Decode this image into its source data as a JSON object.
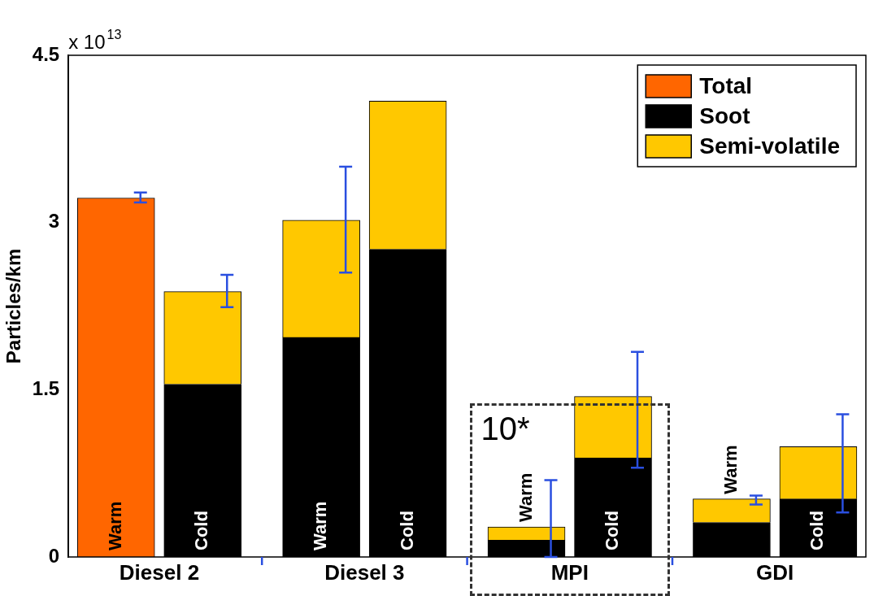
{
  "chart_data": {
    "type": "bar",
    "stacked": true,
    "ylabel": "Particles/km",
    "categories": [
      "Warm",
      "Cold",
      "Warm",
      "Cold",
      "Warm",
      "Cold",
      "Warm",
      "Cold"
    ],
    "series": [
      {
        "name": "Soot",
        "color": "#000000",
        "values": [
          0,
          1.55,
          1.97,
          2.76,
          0.15,
          0.89,
          0.31,
          0.52
        ]
      },
      {
        "name": "Semi-volatile",
        "color": "#ffc800",
        "values": [
          0,
          0.83,
          1.05,
          1.33,
          0.12,
          0.55,
          0.21,
          0.47
        ],
        "errors": [
          null,
          [
            2.24,
            2.53
          ],
          [
            2.55,
            3.5
          ],
          null,
          [
            0,
            0.69
          ],
          [
            0.8,
            1.84
          ],
          [
            0.47,
            0.55
          ],
          [
            0.4,
            1.28
          ]
        ]
      },
      {
        "name": "Total",
        "color": "#ff6600",
        "values": [
          3.22,
          0,
          0,
          0,
          0,
          0,
          0,
          0
        ],
        "errors": [
          [
            3.18,
            3.27
          ],
          null,
          null,
          null,
          null,
          null,
          null,
          null
        ]
      }
    ],
    "ylim": [
      0,
      4.5
    ],
    "yticks": [
      0,
      1.5,
      3,
      4.5
    ],
    "legend": "top right",
    "annotations": [
      "x 10$^{13}$",
      "Diesel 2",
      "Diesel 3",
      "MPI",
      "GDI",
      "10*"
    ]
  }
}
